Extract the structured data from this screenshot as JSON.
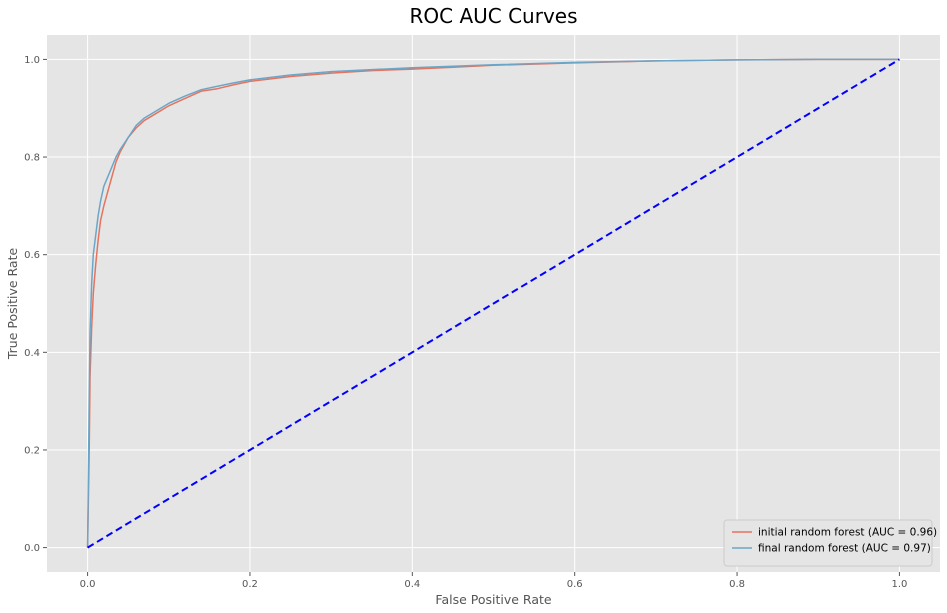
{
  "chart_data": {
    "type": "line",
    "title": "ROC AUC Curves",
    "xlabel": "False Positive Rate",
    "ylabel": "True Positive Rate",
    "xlim": [
      -0.05,
      1.05
    ],
    "ylim": [
      -0.05,
      1.05
    ],
    "xticks": [
      "0.0",
      "0.2",
      "0.4",
      "0.6",
      "0.8",
      "1.0"
    ],
    "yticks": [
      "0.0",
      "0.2",
      "0.4",
      "0.6",
      "0.8",
      "1.0"
    ],
    "grid": true,
    "legend_position": "lower-right",
    "background_color": "#e5e5e5",
    "grid_color": "#ffffff",
    "series": [
      {
        "name": "initial random forest (AUC = 0.96)",
        "color": "#e5735e",
        "style": "solid",
        "x": [
          0,
          0.002,
          0.003,
          0.005,
          0.007,
          0.01,
          0.013,
          0.016,
          0.02,
          0.025,
          0.03,
          0.035,
          0.04,
          0.05,
          0.06,
          0.07,
          0.08,
          0.09,
          0.1,
          0.12,
          0.14,
          0.16,
          0.18,
          0.2,
          0.25,
          0.3,
          0.35,
          0.4,
          0.45,
          0.5,
          0.6,
          0.7,
          0.8,
          0.9,
          1.0
        ],
        "y": [
          0,
          0.2,
          0.35,
          0.45,
          0.52,
          0.58,
          0.63,
          0.67,
          0.7,
          0.73,
          0.76,
          0.79,
          0.81,
          0.84,
          0.86,
          0.875,
          0.885,
          0.895,
          0.905,
          0.92,
          0.935,
          0.94,
          0.948,
          0.955,
          0.965,
          0.972,
          0.977,
          0.98,
          0.984,
          0.988,
          0.993,
          0.997,
          0.999,
          1.0,
          1.0
        ]
      },
      {
        "name": "final random forest (AUC = 0.97)",
        "color": "#6ba6c8",
        "style": "solid",
        "x": [
          0,
          0.002,
          0.003,
          0.005,
          0.007,
          0.01,
          0.013,
          0.016,
          0.02,
          0.025,
          0.03,
          0.035,
          0.04,
          0.05,
          0.06,
          0.07,
          0.08,
          0.09,
          0.1,
          0.12,
          0.14,
          0.16,
          0.18,
          0.2,
          0.25,
          0.3,
          0.35,
          0.4,
          0.45,
          0.5,
          0.6,
          0.7,
          0.8,
          0.9,
          1.0
        ],
        "y": [
          0,
          0.3,
          0.44,
          0.54,
          0.6,
          0.64,
          0.68,
          0.71,
          0.74,
          0.76,
          0.78,
          0.8,
          0.815,
          0.84,
          0.865,
          0.88,
          0.89,
          0.9,
          0.91,
          0.925,
          0.938,
          0.945,
          0.952,
          0.958,
          0.968,
          0.975,
          0.979,
          0.983,
          0.986,
          0.989,
          0.994,
          0.997,
          0.999,
          1.0,
          1.0
        ]
      },
      {
        "name": "",
        "color": "#0000ff",
        "style": "dashed",
        "x": [
          0,
          1
        ],
        "y": [
          0,
          1
        ]
      }
    ]
  }
}
